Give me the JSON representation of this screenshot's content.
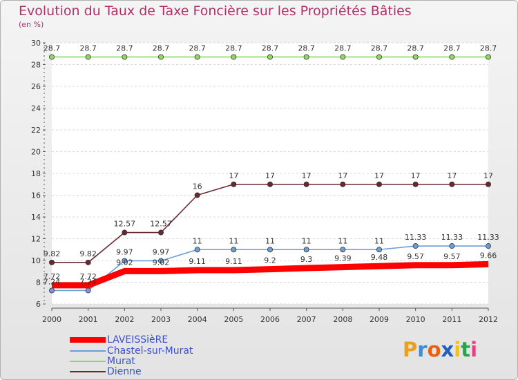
{
  "title": "Evolution du Taux de Taxe Foncière sur les Propriétés Bâties",
  "subtitle": "(en %)",
  "logo_text": [
    "P",
    "r",
    "o",
    "x",
    "i",
    "t",
    "i"
  ],
  "logo_colors": [
    "#e8a020",
    "#3a8fd8",
    "#e86010",
    "#2060c0",
    "#f0c020",
    "#2aa050",
    "#e84080"
  ],
  "chart_data": {
    "type": "line",
    "title": "Evolution du Taux de Taxe Foncière sur les Propriétés Bâties",
    "ylabel": "(en %)",
    "xlabel": "",
    "x": [
      "2000",
      "2001",
      "2002",
      "2003",
      "2004",
      "2005",
      "2006",
      "2007",
      "2008",
      "2009",
      "2010",
      "2011",
      "2012"
    ],
    "ylim": [
      6,
      30
    ],
    "yticks": [
      6,
      8,
      10,
      12,
      14,
      16,
      18,
      20,
      22,
      24,
      26,
      28,
      30
    ],
    "series": [
      {
        "name": "LAVEISSièRE",
        "color": "#ff0000",
        "values": [
          7.72,
          7.72,
          9.02,
          9.02,
          9.11,
          9.11,
          9.2,
          9.3,
          9.39,
          9.48,
          9.57,
          9.57,
          9.66
        ],
        "labels": [
          "7.72",
          "7.72",
          "9.02",
          "9.02",
          "9.11",
          "9.11",
          "9.2",
          "9.3",
          "9.39",
          "9.48",
          "9.57",
          "9.57",
          "9.66"
        ]
      },
      {
        "name": "Chastel-sur-Murat",
        "color": "#6a9ed8",
        "values": [
          7.24,
          7.24,
          9.97,
          9.97,
          11,
          11,
          11,
          11,
          11,
          11,
          11.33,
          11.33,
          11.33
        ],
        "labels": [
          "7.24",
          "7.24",
          "9.97",
          "9.97",
          "11",
          "11",
          "11",
          "11",
          "11",
          "11",
          "11.33",
          "11.33",
          "11.33"
        ]
      },
      {
        "name": "Murat",
        "color": "#8fd860",
        "values": [
          28.7,
          28.7,
          28.7,
          28.7,
          28.7,
          28.7,
          28.7,
          28.7,
          28.7,
          28.7,
          28.7,
          28.7,
          28.7
        ],
        "labels": [
          "28.7",
          "28.7",
          "28.7",
          "28.7",
          "28.7",
          "28.7",
          "28.7",
          "28.7",
          "28.7",
          "28.7",
          "28.7",
          "28.7",
          "28.7"
        ]
      },
      {
        "name": "Dienne",
        "color": "#6a2830",
        "values": [
          9.82,
          9.82,
          12.57,
          12.57,
          16,
          17,
          17,
          17,
          17,
          17,
          17,
          17,
          17
        ],
        "labels": [
          "9.82",
          "9.82",
          "12.57",
          "12.57",
          "16",
          "17",
          "17",
          "17",
          "17",
          "17",
          "17",
          "17",
          "17"
        ]
      }
    ]
  }
}
